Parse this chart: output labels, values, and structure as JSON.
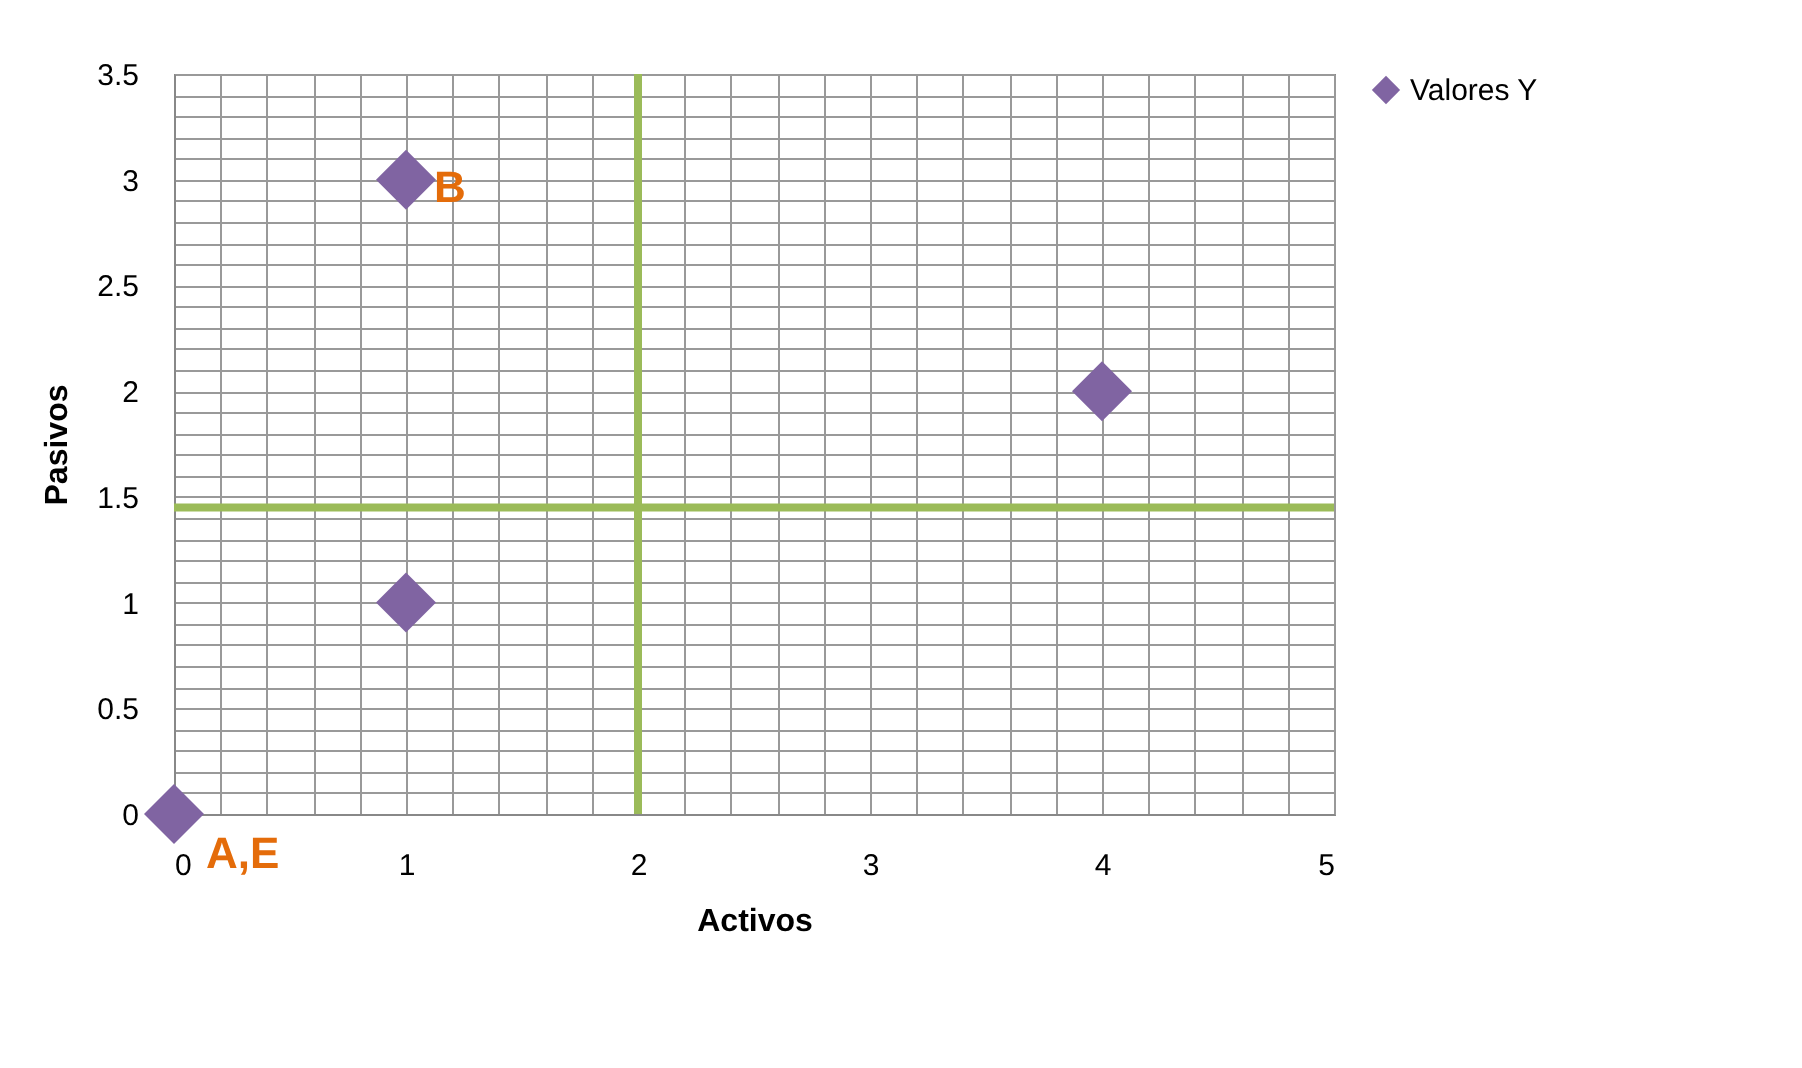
{
  "chart_data": {
    "type": "scatter",
    "xlabel": "Activos",
    "ylabel": "Pasivos",
    "x": [
      0,
      1,
      1,
      4
    ],
    "series": [
      {
        "name": "Valores Y",
        "color": "#8064a2",
        "values": [
          0,
          3,
          1,
          2
        ]
      }
    ],
    "marker": "diamond",
    "legend": "right",
    "grid": true,
    "xlim": [
      0,
      5
    ],
    "ylim": [
      0,
      3.5
    ],
    "xticks": [
      0,
      {
        "value": 0.2,
        "label": null
      },
      {
        "value": 0.4,
        "label": null
      },
      {
        "value": 0.6,
        "label": null
      },
      {
        "value": 0.8,
        "label": null
      },
      1,
      {
        "value": 1.2,
        "label": null
      },
      {
        "value": 1.4,
        "label": null
      },
      {
        "value": 1.6,
        "label": null
      },
      {
        "value": 1.8,
        "label": null
      },
      2,
      {
        "value": 2.2,
        "label": null
      },
      {
        "value": 2.4,
        "label": null
      },
      {
        "value": 2.6,
        "label": null
      },
      {
        "value": 2.8,
        "label": null
      },
      3,
      {
        "value": 3.2,
        "label": null
      },
      {
        "value": 3.4,
        "label": null
      },
      {
        "value": 3.6,
        "label": null
      },
      {
        "value": 3.8,
        "label": null
      },
      4,
      {
        "value": 4.2,
        "label": null
      },
      {
        "value": 4.4,
        "label": null
      },
      {
        "value": 4.6,
        "label": null
      },
      {
        "value": 4.8,
        "label": null
      },
      5
    ],
    "yticks": [
      0,
      {
        "value": 0.1,
        "label": null
      },
      {
        "value": 0.2,
        "label": null
      },
      {
        "value": 0.3,
        "label": null
      },
      {
        "value": 0.4,
        "label": null
      },
      0.5,
      {
        "value": 0.6,
        "label": null
      },
      {
        "value": 0.7,
        "label": null
      },
      {
        "value": 0.8,
        "label": null
      },
      {
        "value": 0.9,
        "label": null
      },
      1,
      {
        "value": 1.1,
        "label": null
      },
      {
        "value": 1.2,
        "label": null
      },
      {
        "value": 1.3,
        "label": null
      },
      {
        "value": 1.4,
        "label": null
      },
      1.5,
      {
        "value": 1.6,
        "label": null
      },
      {
        "value": 1.7,
        "label": null
      },
      {
        "value": 1.8,
        "label": null
      },
      {
        "value": 1.9,
        "label": null
      },
      2,
      {
        "value": 2.1,
        "label": null
      },
      {
        "value": 2.2,
        "label": null
      },
      {
        "value": 2.3,
        "label": null
      },
      {
        "value": 2.4,
        "label": null
      },
      2.5,
      {
        "value": 2.6,
        "label": null
      },
      {
        "value": 2.7,
        "label": null
      },
      {
        "value": 2.8,
        "label": null
      },
      {
        "value": 2.9,
        "label": null
      },
      3,
      {
        "value": 3.1,
        "label": null
      },
      {
        "value": 3.2,
        "label": null
      },
      {
        "value": 3.3,
        "label": null
      },
      {
        "value": 3.4,
        "label": null
      },
      3.5
    ],
    "ref_lines": [
      {
        "axis": "x",
        "value": 2,
        "label": null,
        "color": "#9bbb59"
      },
      {
        "axis": "y",
        "value": 1.45,
        "label": null,
        "color": "#9bbb59"
      }
    ],
    "annotations": [
      {
        "text": "B",
        "x": 1,
        "y": 3
      },
      {
        "text": "A,E",
        "x": 0,
        "y": 0
      }
    ]
  }
}
